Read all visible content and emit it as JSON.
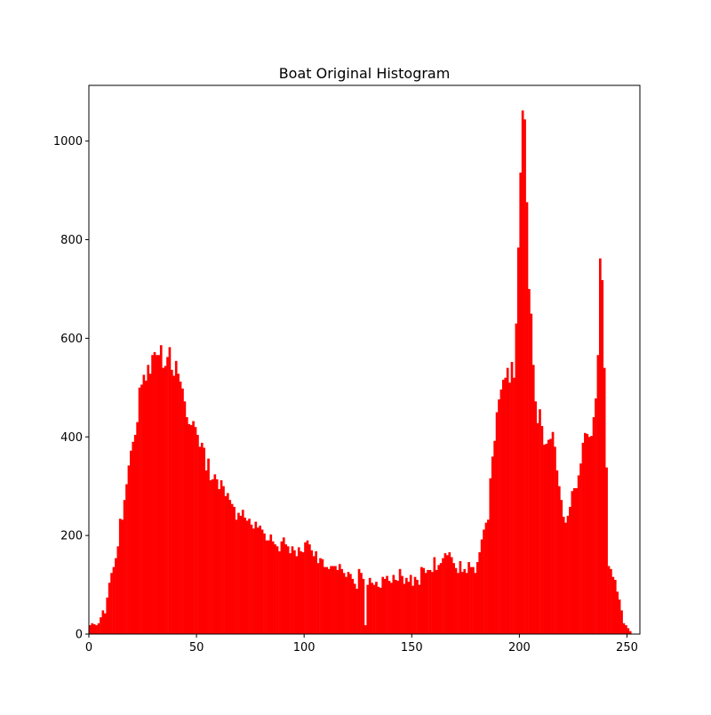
{
  "chart_data": {
    "type": "bar",
    "title": "Boat Original Histogram",
    "xlabel": "",
    "ylabel": "",
    "xlim": [
      0,
      256
    ],
    "ylim": [
      0,
      1113
    ],
    "xticks": [
      0,
      50,
      100,
      150,
      200,
      250
    ],
    "yticks": [
      0,
      200,
      400,
      600,
      800,
      1000
    ],
    "grid": false,
    "legend": "none",
    "bar_color": "#ff0000",
    "bin_start": 0,
    "bin_width": 1,
    "values": [
      18,
      22,
      20,
      18,
      22,
      34,
      48,
      42,
      74,
      104,
      124,
      136,
      154,
      178,
      234,
      232,
      272,
      304,
      342,
      372,
      390,
      404,
      430,
      500,
      506,
      526,
      514,
      546,
      528,
      566,
      572,
      566,
      566,
      586,
      540,
      544,
      562,
      582,
      536,
      524,
      554,
      528,
      512,
      498,
      472,
      440,
      426,
      424,
      432,
      420,
      404,
      380,
      388,
      378,
      332,
      356,
      312,
      314,
      324,
      314,
      294,
      312,
      300,
      280,
      286,
      272,
      264,
      258,
      232,
      246,
      240,
      252,
      236,
      230,
      234,
      222,
      214,
      228,
      216,
      220,
      212,
      204,
      190,
      190,
      202,
      188,
      182,
      178,
      168,
      188,
      196,
      182,
      178,
      164,
      178,
      170,
      158,
      176,
      168,
      166,
      186,
      190,
      182,
      170,
      158,
      168,
      144,
      154,
      152,
      136,
      136,
      132,
      138,
      138,
      138,
      130,
      142,
      132,
      124,
      116,
      126,
      122,
      112,
      102,
      92,
      132,
      124,
      112,
      18,
      100,
      114,
      104,
      100,
      106,
      96,
      94,
      116,
      112,
      118,
      108,
      104,
      120,
      110,
      108,
      132,
      118,
      102,
      114,
      106,
      120,
      98,
      116,
      110,
      100,
      136,
      134,
      124,
      130,
      130,
      126,
      156,
      130,
      140,
      144,
      154,
      164,
      160,
      166,
      156,
      144,
      134,
      124,
      148,
      126,
      132,
      124,
      146,
      136,
      136,
      124,
      146,
      166,
      192,
      212,
      226,
      232,
      316,
      360,
      392,
      450,
      476,
      496,
      516,
      520,
      540,
      510,
      552,
      520,
      630,
      784,
      936,
      1062,
      1044,
      876,
      700,
      650,
      546,
      472,
      428,
      456,
      422,
      384,
      386,
      394,
      396,
      410,
      380,
      332,
      300,
      272,
      238,
      226,
      240,
      258,
      290,
      296,
      296,
      322,
      346,
      388,
      408,
      406,
      400,
      402,
      440,
      478,
      566,
      762,
      718,
      540,
      338,
      138,
      132,
      116,
      110,
      86,
      70,
      48,
      22,
      18,
      12,
      6,
      0,
      0,
      0,
      0
    ]
  }
}
